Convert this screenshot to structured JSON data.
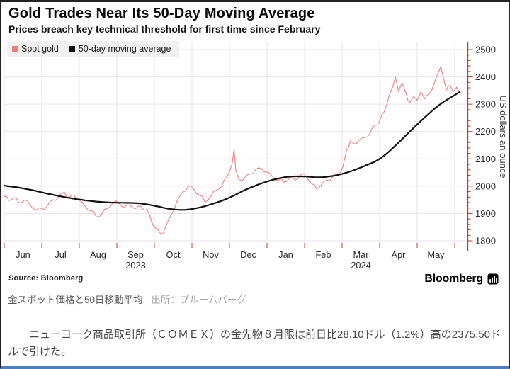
{
  "chart_data": {
    "type": "line",
    "title": "Gold Trades Near Its 50-Day Moving Average",
    "subtitle": "Prices breach key technical threshold for first time since February",
    "ylabel": "US dollars an ounce",
    "ylim": [
      1792,
      2526
    ],
    "y_ticks": [
      1800,
      1900,
      2000,
      2100,
      2200,
      2300,
      2400,
      2500
    ],
    "y_minor_step": 20,
    "x_unit": "months since 2023-06-01",
    "x_categories": [
      "Jun",
      "Jul",
      "Aug",
      "Sep",
      "Oct",
      "Nov",
      "Dec",
      "Jan",
      "Feb",
      "Mar",
      "Apr",
      "May"
    ],
    "year_labels": [
      {
        "text": "2023",
        "under_month_index": 3
      },
      {
        "text": "2024",
        "under_month_index": 9
      }
    ],
    "grid": true,
    "legend_position": "top-left",
    "axis_color": "#c0392b",
    "grid_color": "#e6e6e6",
    "texture_amplitude": 8,
    "series": [
      {
        "name": "Spot gold",
        "color": "#ee7f7e",
        "style": "jagged",
        "points": [
          [
            0.0,
            1962
          ],
          [
            0.12,
            1948
          ],
          [
            0.25,
            1958
          ],
          [
            0.4,
            1938
          ],
          [
            0.55,
            1950
          ],
          [
            0.7,
            1928
          ],
          [
            0.85,
            1912
          ],
          [
            1.0,
            1918
          ],
          [
            1.15,
            1928
          ],
          [
            1.3,
            1950
          ],
          [
            1.45,
            1962
          ],
          [
            1.6,
            1978
          ],
          [
            1.72,
            1958
          ],
          [
            1.85,
            1968
          ],
          [
            2.0,
            1948
          ],
          [
            2.15,
            1928
          ],
          [
            2.3,
            1910
          ],
          [
            2.45,
            1888
          ],
          [
            2.6,
            1898
          ],
          [
            2.75,
            1918
          ],
          [
            2.9,
            1940
          ],
          [
            3.05,
            1938
          ],
          [
            3.2,
            1922
          ],
          [
            3.35,
            1930
          ],
          [
            3.5,
            1918
          ],
          [
            3.65,
            1925
          ],
          [
            3.8,
            1915
          ],
          [
            3.92,
            1872
          ],
          [
            4.05,
            1845
          ],
          [
            4.18,
            1822
          ],
          [
            4.3,
            1852
          ],
          [
            4.45,
            1895
          ],
          [
            4.6,
            1945
          ],
          [
            4.75,
            1978
          ],
          [
            4.9,
            1998
          ],
          [
            5.05,
            1988
          ],
          [
            5.2,
            1968
          ],
          [
            5.35,
            1942
          ],
          [
            5.5,
            1962
          ],
          [
            5.65,
            1985
          ],
          [
            5.8,
            2002
          ],
          [
            5.95,
            2038
          ],
          [
            6.07,
            2082
          ],
          [
            6.12,
            2136
          ],
          [
            6.17,
            2058
          ],
          [
            6.25,
            2025
          ],
          [
            6.4,
            2030
          ],
          [
            6.55,
            2045
          ],
          [
            6.7,
            2062
          ],
          [
            6.85,
            2065
          ],
          [
            7.0,
            2052
          ],
          [
            7.15,
            2035
          ],
          [
            7.3,
            2022
          ],
          [
            7.45,
            2015
          ],
          [
            7.6,
            2030
          ],
          [
            7.75,
            2022
          ],
          [
            7.9,
            2042
          ],
          [
            8.05,
            2035
          ],
          [
            8.2,
            2008
          ],
          [
            8.32,
            1990
          ],
          [
            8.45,
            2005
          ],
          [
            8.6,
            2022
          ],
          [
            8.75,
            2035
          ],
          [
            8.9,
            2045
          ],
          [
            9.02,
            2072
          ],
          [
            9.12,
            2132
          ],
          [
            9.22,
            2165
          ],
          [
            9.32,
            2155
          ],
          [
            9.45,
            2168
          ],
          [
            9.6,
            2178
          ],
          [
            9.75,
            2195
          ],
          [
            9.88,
            2222
          ],
          [
            10.0,
            2238
          ],
          [
            10.12,
            2272
          ],
          [
            10.25,
            2330
          ],
          [
            10.35,
            2365
          ],
          [
            10.42,
            2400
          ],
          [
            10.5,
            2348
          ],
          [
            10.6,
            2378
          ],
          [
            10.7,
            2342
          ],
          [
            10.8,
            2305
          ],
          [
            10.9,
            2328
          ],
          [
            11.0,
            2315
          ],
          [
            11.1,
            2345
          ],
          [
            11.2,
            2320
          ],
          [
            11.32,
            2338
          ],
          [
            11.45,
            2375
          ],
          [
            11.55,
            2412
          ],
          [
            11.63,
            2438
          ],
          [
            11.7,
            2395
          ],
          [
            11.78,
            2352
          ],
          [
            11.88,
            2368
          ],
          [
            11.96,
            2345
          ],
          [
            12.05,
            2362
          ],
          [
            12.15,
            2335
          ]
        ]
      },
      {
        "name": "50-day moving average",
        "color": "#111111",
        "style": "smooth",
        "points": [
          [
            0.0,
            2002
          ],
          [
            0.4,
            1995
          ],
          [
            0.8,
            1984
          ],
          [
            1.2,
            1971
          ],
          [
            1.6,
            1960
          ],
          [
            2.0,
            1951
          ],
          [
            2.4,
            1944
          ],
          [
            2.8,
            1940
          ],
          [
            3.2,
            1939
          ],
          [
            3.6,
            1938
          ],
          [
            4.0,
            1929
          ],
          [
            4.4,
            1916
          ],
          [
            4.8,
            1912
          ],
          [
            5.2,
            1921
          ],
          [
            5.6,
            1937
          ],
          [
            6.0,
            1957
          ],
          [
            6.4,
            1986
          ],
          [
            6.8,
            2008
          ],
          [
            7.2,
            2026
          ],
          [
            7.6,
            2036
          ],
          [
            8.0,
            2036
          ],
          [
            8.4,
            2031
          ],
          [
            8.8,
            2038
          ],
          [
            9.2,
            2052
          ],
          [
            9.6,
            2074
          ],
          [
            10.0,
            2097
          ],
          [
            10.4,
            2145
          ],
          [
            10.8,
            2200
          ],
          [
            11.2,
            2252
          ],
          [
            11.6,
            2300
          ],
          [
            11.9,
            2325
          ],
          [
            12.15,
            2346
          ]
        ]
      }
    ]
  },
  "source": {
    "label": "Source: Bloomberg"
  },
  "logo": {
    "wordmark": "Bloomberg"
  },
  "captions": {
    "jp_title": "金スポット価格と50日移動平均",
    "jp_source": "出所：ブルームバーグ"
  },
  "article": {
    "text": "ニューヨーク商品取引所（ＣＯＭＥＸ）の金先物８月限は前日比28.10ドル（1.2%）高の2375.50ドルで引けた。"
  }
}
